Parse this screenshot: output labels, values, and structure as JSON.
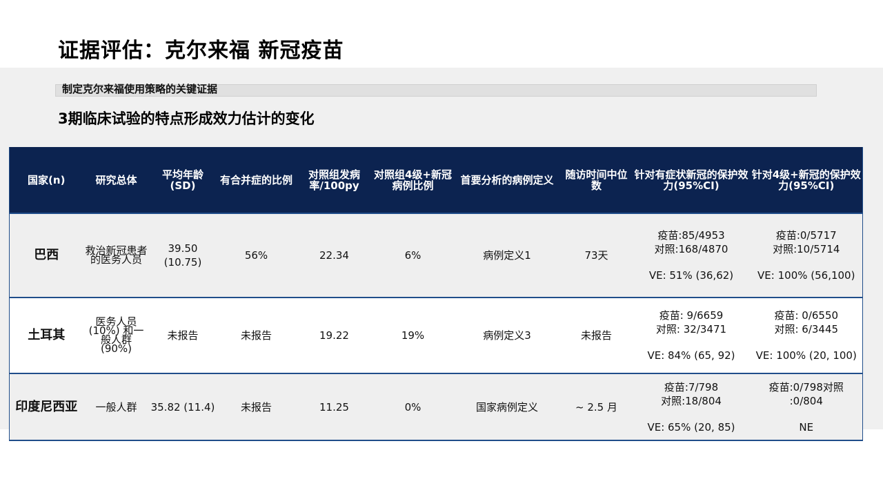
{
  "page": {
    "title": "证据评估：克尔来福 新冠疫苗",
    "subtitle": "制定克尔来福使用策略的关键证据",
    "section_title": "3期临床试验的特点形成效力估计的变化"
  },
  "table": {
    "headers": [
      "国家(n)",
      "研究总体",
      "平均年龄(SD)",
      "有合并症的比例",
      "对照组发病率/100py",
      "对照组4级+新冠病例比例",
      "首要分析的病例定义",
      "随访时间中位数",
      "针对有症状新冠的保护效力(95%CI)",
      "针对4级+新冠的保护效力(95%CI)"
    ],
    "rows": [
      {
        "country": "巴西",
        "population": "救治新冠患者的医务人员",
        "age": "39.50 (10.75)",
        "comorbidity": "56%",
        "incidence": "22.34",
        "grade4": "6%",
        "case_def": "病例定义1",
        "followup": "73天",
        "symp_vaccine": "疫苗:85/4953",
        "symp_control": "对照:168/4870",
        "symp_ve": "VE: 51% (36,62)",
        "g4_vaccine": "疫苗:0/5717",
        "g4_control": "对照:10/5714",
        "g4_ve": "VE: 100% (56,100)"
      },
      {
        "country": "土耳其",
        "population": "医务人员 (10%) 和一般人群 (90%)",
        "age": "未报告",
        "comorbidity": "未报告",
        "incidence": "19.22",
        "grade4": "19%",
        "case_def": "病例定义3",
        "followup": "未报告",
        "symp_vaccine": "疫苗: 9/6659",
        "symp_control": "对照: 32/3471",
        "symp_ve": "VE: 84% (65, 92)",
        "g4_vaccine": "疫苗: 0/6550",
        "g4_control": "对照: 6/3445",
        "g4_ve": "VE: 100% (20, 100)"
      },
      {
        "country": "印度尼西亚",
        "population": "一般人群",
        "age": "35.82 (11.4)",
        "comorbidity": "未报告",
        "incidence": "11.25",
        "grade4": "0%",
        "case_def": "国家病例定义",
        "followup": "~ 2.5 月",
        "symp_vaccine": "疫苗:7/798",
        "symp_control": "对照:18/804",
        "symp_ve": "VE: 65% (20, 85)",
        "g4_vaccine": "疫苗:0/798对照",
        "g4_control": ":0/804",
        "g4_ve": "NE"
      }
    ]
  }
}
